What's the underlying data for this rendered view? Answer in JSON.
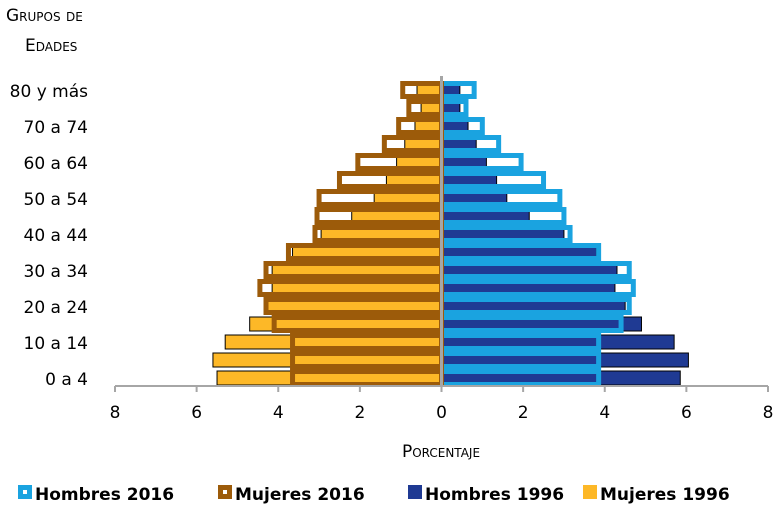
{
  "chart_data": {
    "type": "pyramid",
    "ylabel": [
      "Grupos de",
      "Edades"
    ],
    "xlabel": "Porcentaje",
    "categories": [
      "0 a 4",
      null,
      "10 a 14",
      null,
      "20 a 24",
      null,
      "30 a 34",
      null,
      "40 a 44",
      null,
      "50 a 54",
      null,
      "60 a 64",
      null,
      "70 a 74",
      null,
      "80 y más"
    ],
    "xlim": [
      -8,
      8
    ],
    "xticks": [
      {
        "value": -8,
        "label": "8"
      },
      {
        "value": -6,
        "label": "6"
      },
      {
        "value": -4,
        "label": "4"
      },
      {
        "value": -2,
        "label": "2"
      },
      0,
      2,
      4,
      6,
      8
    ],
    "series": [
      {
        "name": "Hombres 2016",
        "color": "#1aa3e0",
        "side": "right",
        "style": "outline",
        "values": [
          3.85,
          3.85,
          3.85,
          4.4,
          4.6,
          4.7,
          4.6,
          3.85,
          3.15,
          3.0,
          2.9,
          2.5,
          1.95,
          1.4,
          1.0,
          0.6,
          0.8
        ]
      },
      {
        "name": "Mujeres 2016",
        "color": "#9c5b0a",
        "side": "left",
        "style": "outline",
        "values": [
          3.65,
          3.65,
          3.65,
          4.1,
          4.3,
          4.45,
          4.3,
          3.75,
          3.1,
          3.05,
          3.0,
          2.5,
          2.05,
          1.4,
          1.05,
          0.8,
          0.95
        ]
      },
      {
        "name": "Hombres 1996",
        "color": "#1f3a93",
        "side": "right",
        "style": "fill",
        "values": [
          5.85,
          6.05,
          5.7,
          4.9,
          4.5,
          4.25,
          4.3,
          3.8,
          3.0,
          2.15,
          1.6,
          1.35,
          1.1,
          0.85,
          0.65,
          0.45,
          0.45
        ]
      },
      {
        "name": "Mujeres 1996",
        "color": "#fdb827",
        "side": "left",
        "style": "fill",
        "values": [
          5.5,
          5.6,
          5.3,
          4.7,
          4.3,
          4.15,
          4.15,
          3.65,
          2.95,
          2.2,
          1.65,
          1.35,
          1.1,
          0.9,
          0.65,
          0.5,
          0.6
        ]
      }
    ]
  }
}
